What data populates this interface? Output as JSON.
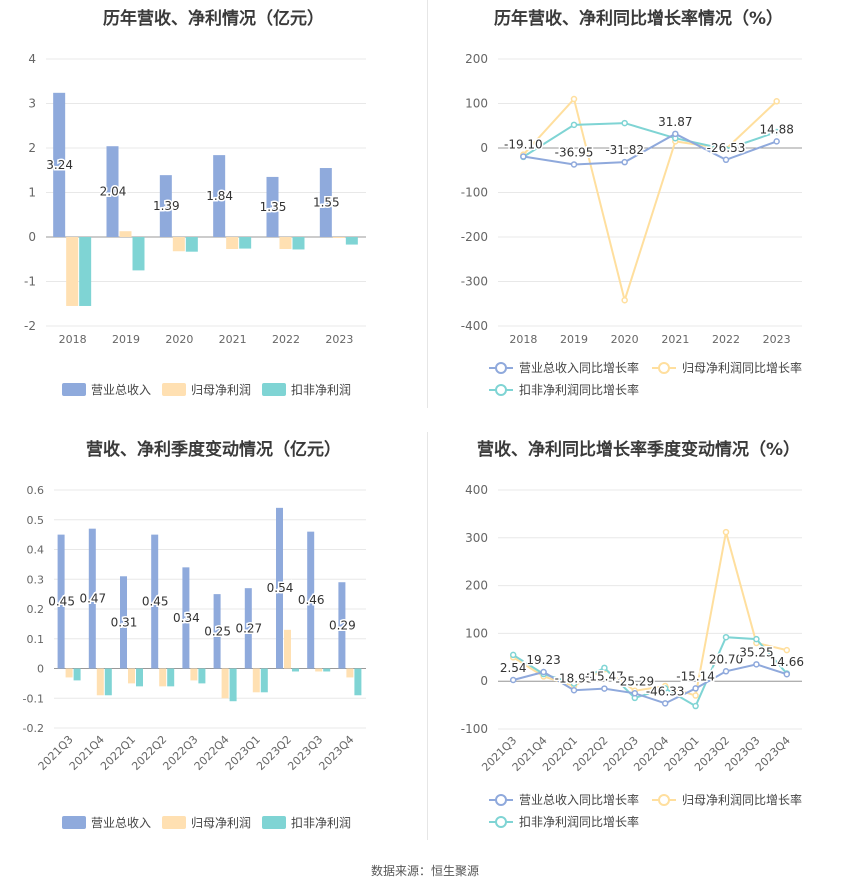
{
  "source_label": "数据来源：恒生聚源",
  "legend_labels": {
    "revenue": "营业总收入",
    "net_profit": "归母净利润",
    "deducted_profit": "扣非净利润",
    "revenue_growth": "营业总收入同比增长率",
    "net_profit_growth": "归母净利润同比增长率",
    "deducted_profit_growth": "扣非净利润同比增长率"
  },
  "colors": {
    "revenue": "#8faadc",
    "net_profit": "#ffe0b2",
    "deducted_profit": "#7fd4d4",
    "revenue_line": "#8fa9dc",
    "net_profit_line": "#ffdf9e",
    "deducted_profit_line": "#7fd4d4"
  },
  "chart_data": [
    {
      "id": "annual_bar",
      "type": "bar",
      "title": "历年营收、净利情况（亿元）",
      "categories": [
        "2018",
        "2019",
        "2020",
        "2021",
        "2022",
        "2023"
      ],
      "ylim": [
        -2,
        4
      ],
      "yticks": [
        "4",
        "3",
        "2",
        "1",
        "0",
        "-1",
        "-2"
      ],
      "series": [
        {
          "key": "revenue",
          "name": "营业总收入",
          "values": [
            3.24,
            2.04,
            1.39,
            1.84,
            1.35,
            1.55
          ],
          "labels": [
            "3.24",
            "2.04",
            "1.39",
            "1.84",
            "1.35",
            "1.55"
          ]
        },
        {
          "key": "net_profit",
          "name": "归母净利润",
          "values": [
            -1.55,
            0.13,
            -0.32,
            -0.27,
            -0.27,
            -0.02
          ]
        },
        {
          "key": "deducted_profit",
          "name": "扣非净利润",
          "values": [
            -1.55,
            -0.75,
            -0.33,
            -0.26,
            -0.28,
            -0.17
          ]
        }
      ]
    },
    {
      "id": "annual_line",
      "type": "line",
      "title": "历年营收、净利同比增长率情况（%）",
      "categories": [
        "2018",
        "2019",
        "2020",
        "2021",
        "2022",
        "2023"
      ],
      "ylim": [
        -400,
        200
      ],
      "yticks": [
        "200",
        "100",
        "0",
        "-100",
        "-200",
        "-300",
        "-400"
      ],
      "series": [
        {
          "key": "revenue_growth",
          "name": "营业总收入同比增长率",
          "values": [
            -19.1,
            -36.95,
            -31.82,
            31.87,
            -26.53,
            14.88
          ],
          "labels": [
            "-19.10",
            "-36.95",
            "-31.82",
            "31.87",
            "-26.53",
            "14.88"
          ]
        },
        {
          "key": "net_profit_growth",
          "name": "归母净利润同比增长率",
          "values": [
            -15,
            110,
            -342,
            15,
            -2,
            105
          ]
        },
        {
          "key": "deducted_profit_growth",
          "name": "扣非净利润同比增长率",
          "values": [
            -20,
            52,
            56,
            22,
            -3,
            36
          ]
        }
      ]
    },
    {
      "id": "quarter_bar",
      "type": "bar",
      "title": "营收、净利季度变动情况（亿元）",
      "categories": [
        "2021Q3",
        "2021Q4",
        "2022Q1",
        "2022Q2",
        "2022Q3",
        "2022Q4",
        "2023Q1",
        "2023Q2",
        "2023Q3",
        "2023Q4"
      ],
      "ylim": [
        -0.2,
        0.6
      ],
      "yticks": [
        "0.6",
        "0.5",
        "0.4",
        "0.3",
        "0.2",
        "0.1",
        "0",
        "-0.1",
        "-0.2"
      ],
      "series": [
        {
          "key": "revenue",
          "name": "营业总收入",
          "values": [
            0.45,
            0.47,
            0.31,
            0.45,
            0.34,
            0.25,
            0.27,
            0.54,
            0.46,
            0.29
          ],
          "labels": [
            "0.45",
            "0.47",
            "0.31",
            "0.45",
            "0.34",
            "0.25",
            "0.27",
            "0.54",
            "0.46",
            "0.29"
          ]
        },
        {
          "key": "net_profit",
          "name": "归母净利润",
          "values": [
            -0.03,
            -0.09,
            -0.05,
            -0.06,
            -0.04,
            -0.1,
            -0.08,
            0.13,
            -0.01,
            -0.03
          ]
        },
        {
          "key": "deducted_profit",
          "name": "扣非净利润",
          "values": [
            -0.04,
            -0.09,
            -0.06,
            -0.06,
            -0.05,
            -0.11,
            -0.08,
            -0.01,
            -0.01,
            -0.09
          ]
        }
      ]
    },
    {
      "id": "quarter_line",
      "type": "line",
      "title": "营收、净利同比增长率季度变动情况（%）",
      "categories": [
        "2021Q3",
        "2021Q4",
        "2022Q1",
        "2022Q2",
        "2022Q3",
        "2022Q4",
        "2023Q1",
        "2023Q2",
        "2023Q3",
        "2023Q4"
      ],
      "ylim": [
        -100,
        400
      ],
      "yticks": [
        "400",
        "300",
        "200",
        "100",
        "0",
        "-100"
      ],
      "series": [
        {
          "key": "revenue_growth",
          "name": "营业总收入同比增长率",
          "values": [
            2.54,
            19.23,
            -18.95,
            -15.47,
            -25.29,
            -46.33,
            -15.14,
            20.7,
            35.25,
            14.66
          ],
          "labels": [
            "2.54",
            "19.23",
            "-18.95",
            "-15.47",
            "-25.29",
            "-46.33",
            "-15.14",
            "20.70",
            "35.25",
            "14.66"
          ]
        },
        {
          "key": "net_profit_growth",
          "name": "归母净利润同比增长率",
          "values": [
            50,
            10,
            -10,
            25,
            -20,
            -10,
            -30,
            312,
            80,
            65
          ]
        },
        {
          "key": "deducted_profit_growth",
          "name": "扣非净利润同比增长率",
          "values": [
            55,
            15,
            -5,
            28,
            -35,
            -15,
            -52,
            92,
            88,
            16
          ]
        }
      ]
    }
  ]
}
